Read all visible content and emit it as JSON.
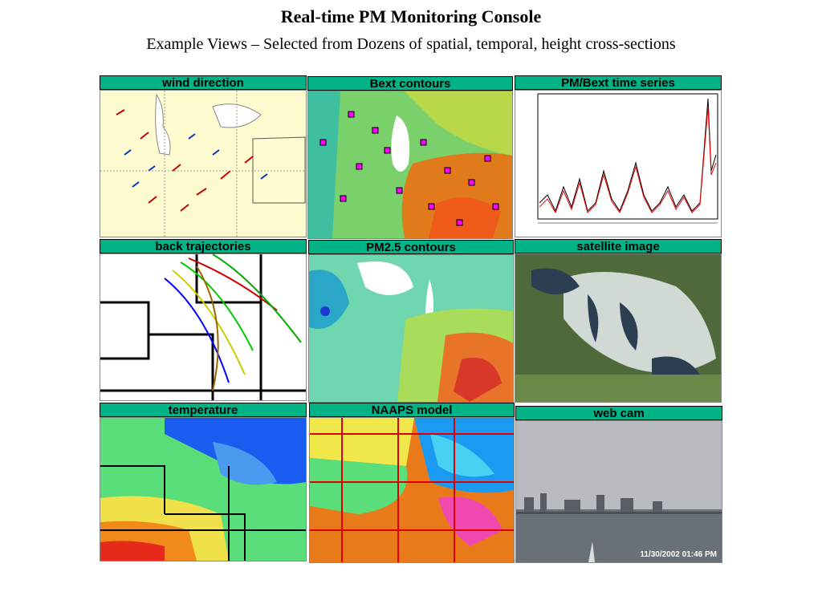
{
  "page": {
    "title": "Real-time PM Monitoring Console",
    "subtitle": "Example Views – Selected from Dozens of spatial, temporal, height cross-sections"
  },
  "panels": [
    {
      "label": "wind direction"
    },
    {
      "label": "Bext contours"
    },
    {
      "label": "PM/Bext time series"
    },
    {
      "label": "back trajectories"
    },
    {
      "label": "PM2.5 contours"
    },
    {
      "label": "satellite image"
    },
    {
      "label": "temperature"
    },
    {
      "label": "NAAPS model"
    },
    {
      "label": "web cam"
    }
  ],
  "webcam": {
    "timestamp": "11/30/2002 01:46 PM"
  },
  "colors": {
    "label_bg": "#00b386"
  }
}
